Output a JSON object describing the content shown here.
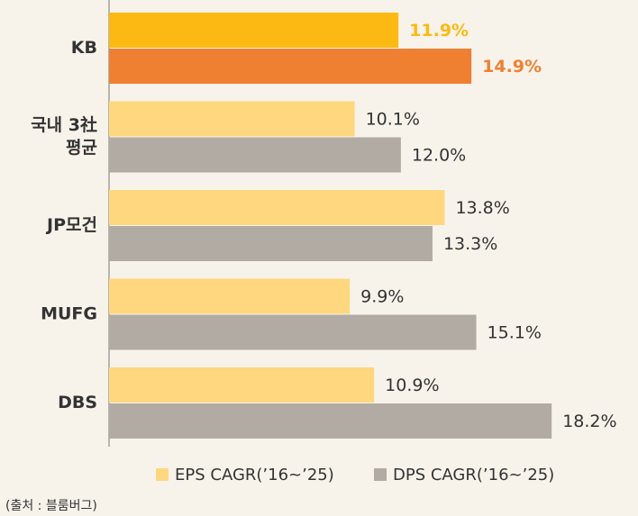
{
  "chart_data": {
    "type": "barh",
    "categories": [
      "KB",
      "국내 3社\n평균",
      "JP모건",
      "MUFG",
      "DBS"
    ],
    "series": [
      {
        "name": "EPS CAGR(’16~’25)",
        "color": "#fed77f",
        "colors": [
          "#fdb913",
          "#fed77f",
          "#fed77f",
          "#fed77f",
          "#fed77f"
        ],
        "values": [
          11.9,
          10.1,
          13.8,
          9.9,
          10.9
        ],
        "value_labels": [
          "11.9%",
          "10.1%",
          "13.8%",
          "9.9%",
          "10.9%"
        ]
      },
      {
        "name": "DPS CAGR(’16~’25)",
        "color": "#b1aba3",
        "colors": [
          "#ef8032",
          "#b1aba3",
          "#b1aba3",
          "#b1aba3",
          "#b1aba3"
        ],
        "values": [
          14.9,
          12.0,
          13.3,
          15.1,
          18.2
        ],
        "value_labels": [
          "14.9%",
          "12.0%",
          "13.3%",
          "15.1%",
          "18.2%"
        ]
      }
    ],
    "xlim": [
      0,
      21.75
    ],
    "source": "(출처 : 블룸버그)"
  }
}
